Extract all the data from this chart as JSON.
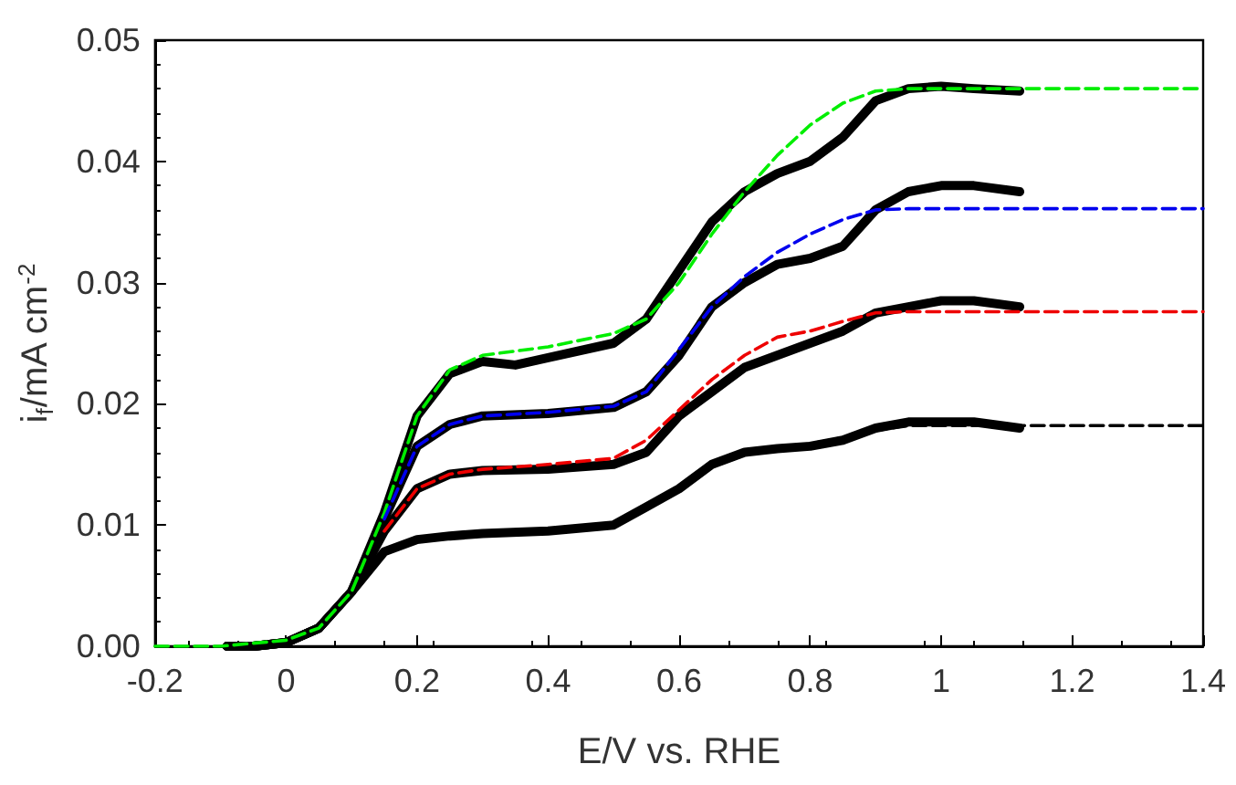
{
  "chart_data": {
    "type": "line",
    "xlabel": "E/V vs. RHE",
    "ylabel": "i$_{f}$/mA cm$^{-2}$",
    "xlim": [
      -0.2,
      1.4
    ],
    "xticks": [
      -0.2,
      0.0,
      0.2,
      0.4,
      0.6,
      0.8,
      1.0,
      1.2,
      1.4
    ],
    "ylim": [
      0,
      0.05
    ],
    "yticks": [
      {
        "value": 0,
        "label": "0.00"
      },
      {
        "value": 0.01,
        "label": "0.01"
      },
      {
        "value": 0.02,
        "label": "0.02"
      },
      {
        "value": 0.03,
        "label": "0.03"
      },
      {
        "value": 0.04,
        "label": "0.04"
      },
      {
        "value": 0.05,
        "label": "0.05"
      }
    ],
    "grid": false,
    "marker": "none",
    "series": [
      {
        "color": "#00ee00",
        "line_style": "dashed",
        "x": [
          -0.2,
          -0.1,
          0,
          0.05,
          0.1,
          0.15,
          0.2,
          0.25,
          0.3,
          0.4,
          0.5,
          0.55,
          0.6,
          0.65,
          0.7,
          0.75,
          0.8,
          0.85,
          0.9,
          0.95,
          1.4
        ],
        "values": [
          0,
          0,
          0.0005,
          0.0015,
          0.0045,
          0.011,
          0.019,
          0.0228,
          0.024,
          0.0247,
          0.0258,
          0.027,
          0.03,
          0.034,
          0.0375,
          0.0405,
          0.043,
          0.0448,
          0.0458,
          0.046,
          0.046
        ]
      },
      {
        "color": "#0000ee",
        "line_style": "dashed",
        "x": [
          0.15,
          0.2,
          0.25,
          0.3,
          0.4,
          0.5,
          0.55,
          0.6,
          0.65,
          0.7,
          0.75,
          0.8,
          0.85,
          0.9,
          0.95,
          1.4
        ],
        "values": [
          0.0105,
          0.0165,
          0.0183,
          0.019,
          0.0193,
          0.0198,
          0.021,
          0.0245,
          0.028,
          0.0305,
          0.0325,
          0.034,
          0.0352,
          0.036,
          0.0361,
          0.0361
        ]
      },
      {
        "color": "#ee0000",
        "line_style": "dashed",
        "x": [
          0.15,
          0.2,
          0.25,
          0.3,
          0.4,
          0.5,
          0.55,
          0.6,
          0.65,
          0.7,
          0.75,
          0.8,
          0.85,
          0.9,
          0.95,
          1.4
        ],
        "values": [
          0.0095,
          0.013,
          0.0142,
          0.0146,
          0.015,
          0.0155,
          0.017,
          0.0195,
          0.022,
          0.024,
          0.0255,
          0.026,
          0.0268,
          0.0275,
          0.0276,
          0.0276
        ]
      },
      {
        "color": "#000000",
        "line_style": "dashed",
        "x": [
          0.15,
          0.2,
          0.25,
          0.3,
          0.4,
          0.5,
          0.55,
          0.6,
          0.65,
          0.7,
          0.75,
          0.8,
          0.85,
          0.9,
          0.95,
          1.4
        ],
        "values": [
          0.0078,
          0.0088,
          0.0091,
          0.0093,
          0.0095,
          0.01,
          0.0115,
          0.013,
          0.0148,
          0.0158,
          0.0163,
          0.0167,
          0.0172,
          0.0178,
          0.0182,
          0.0182
        ]
      },
      {
        "color": "#000000",
        "line_style": "solid",
        "x": [
          -0.09,
          -0.05,
          0,
          0.05,
          0.1,
          0.15,
          0.2,
          0.25,
          0.3,
          0.35,
          0.4,
          0.5,
          0.55,
          0.6,
          0.65,
          0.7,
          0.75,
          0.8,
          0.85,
          0.9,
          0.95,
          1.0,
          1.05,
          1.12
        ],
        "values": [
          0,
          0,
          0.0003,
          0.0015,
          0.0045,
          0.011,
          0.019,
          0.0225,
          0.0235,
          0.0232,
          0.0238,
          0.025,
          0.027,
          0.031,
          0.035,
          0.0375,
          0.039,
          0.04,
          0.042,
          0.045,
          0.046,
          0.0462,
          0.046,
          0.0458
        ]
      },
      {
        "color": "#000000",
        "line_style": "solid",
        "x": [
          -0.09,
          -0.05,
          0,
          0.05,
          0.1,
          0.15,
          0.2,
          0.25,
          0.3,
          0.4,
          0.5,
          0.55,
          0.6,
          0.65,
          0.7,
          0.75,
          0.8,
          0.85,
          0.9,
          0.95,
          1.0,
          1.05,
          1.12
        ],
        "values": [
          0,
          0,
          0.0003,
          0.0015,
          0.0045,
          0.0105,
          0.0165,
          0.0183,
          0.019,
          0.0192,
          0.0197,
          0.021,
          0.024,
          0.028,
          0.03,
          0.0315,
          0.032,
          0.033,
          0.036,
          0.0375,
          0.038,
          0.038,
          0.0375
        ]
      },
      {
        "color": "#000000",
        "line_style": "solid",
        "x": [
          -0.09,
          -0.05,
          0,
          0.05,
          0.1,
          0.15,
          0.2,
          0.25,
          0.3,
          0.4,
          0.5,
          0.55,
          0.6,
          0.65,
          0.7,
          0.75,
          0.8,
          0.85,
          0.9,
          0.95,
          1.0,
          1.05,
          1.12
        ],
        "values": [
          0,
          0,
          0.0003,
          0.0015,
          0.0045,
          0.0095,
          0.013,
          0.0142,
          0.0145,
          0.0146,
          0.015,
          0.016,
          0.019,
          0.021,
          0.023,
          0.024,
          0.025,
          0.026,
          0.0275,
          0.028,
          0.0285,
          0.0285,
          0.028
        ]
      },
      {
        "color": "#000000",
        "line_style": "solid",
        "x": [
          -0.09,
          -0.05,
          0,
          0.05,
          0.1,
          0.15,
          0.2,
          0.25,
          0.3,
          0.4,
          0.5,
          0.55,
          0.6,
          0.65,
          0.7,
          0.75,
          0.8,
          0.85,
          0.9,
          0.95,
          1.0,
          1.05,
          1.12
        ],
        "values": [
          0,
          0,
          0.0003,
          0.0015,
          0.0045,
          0.0078,
          0.0088,
          0.0091,
          0.0093,
          0.0095,
          0.01,
          0.0115,
          0.013,
          0.015,
          0.016,
          0.0163,
          0.0165,
          0.017,
          0.018,
          0.0185,
          0.0185,
          0.0185,
          0.018
        ]
      }
    ]
  }
}
